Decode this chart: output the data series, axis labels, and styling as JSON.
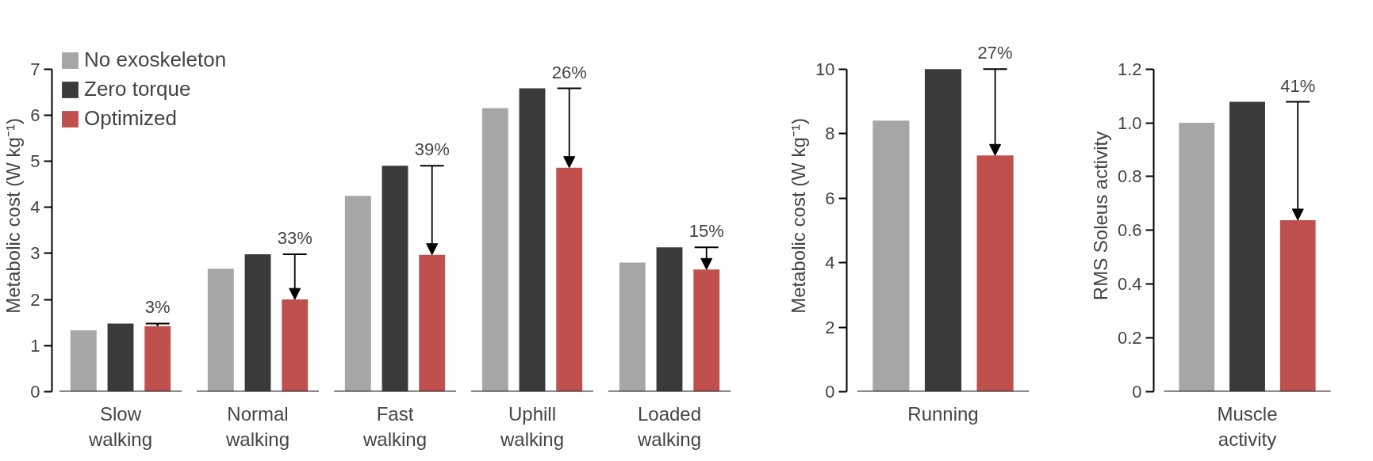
{
  "chart_data": [
    {
      "type": "bar",
      "ylabel": "Metabolic cost (W kg⁻¹)",
      "categories": [
        "Slow walking",
        "Normal walking",
        "Fast walking",
        "Uphill walking",
        "Loaded walking"
      ],
      "series": [
        {
          "name": "No exoskeleton",
          "color": "#a6a6a6",
          "values": [
            1.33,
            2.67,
            4.25,
            6.15,
            2.8
          ]
        },
        {
          "name": "Zero torque",
          "color": "#3a3a3a",
          "values": [
            1.48,
            2.98,
            4.9,
            6.58,
            3.13
          ]
        },
        {
          "name": "Optimized",
          "color": "#c0504d",
          "values": [
            1.42,
            2.0,
            2.97,
            4.86,
            2.65
          ]
        }
      ],
      "ylim": [
        0,
        7
      ],
      "yticks": [
        0,
        1,
        2,
        3,
        4,
        5,
        6,
        7
      ],
      "grid": false,
      "legend": "top left",
      "annotations": [
        {
          "text": "3%",
          "x": "Slow walking",
          "y": 1.48
        },
        {
          "text": "33%",
          "x": "Normal walking",
          "y": 2.98
        },
        {
          "text": "39%",
          "x": "Fast walking",
          "y": 4.9
        },
        {
          "text": "26%",
          "x": "Uphill walking",
          "y": 6.58
        },
        {
          "text": "15%",
          "x": "Loaded walking",
          "y": 3.13
        }
      ]
    },
    {
      "type": "bar",
      "ylabel": "Metabolic cost (W kg⁻¹)",
      "categories": [
        "Running"
      ],
      "series": [
        {
          "color": "#a6a6a6",
          "values": [
            8.4
          ]
        },
        {
          "color": "#3a3a3a",
          "values": [
            10.0
          ]
        },
        {
          "color": "#c0504d",
          "values": [
            7.32
          ]
        }
      ],
      "ylim": [
        0,
        10
      ],
      "yticks": [
        0,
        2,
        4,
        6,
        8,
        10
      ],
      "grid": false,
      "legend": false,
      "annotations": [
        {
          "text": "27%",
          "x": "Running",
          "y": 10.0
        }
      ]
    },
    {
      "type": "bar",
      "ylabel": "RMS Soleus activity",
      "categories": [
        "Muscle activity"
      ],
      "series": [
        {
          "color": "#a6a6a6",
          "values": [
            1.0
          ]
        },
        {
          "color": "#3a3a3a",
          "values": [
            1.078
          ]
        },
        {
          "color": "#c0504d",
          "values": [
            0.638
          ]
        }
      ],
      "ylim": [
        0,
        1.2
      ],
      "yticks": [
        0,
        0.2,
        0.4,
        0.6,
        0.8,
        {
          "value": 1.0,
          "label": "1.0"
        },
        1.2
      ],
      "grid": false,
      "legend": false,
      "annotations": [
        {
          "text": "41%",
          "x": "Muscle activity",
          "y": 1.078
        }
      ]
    }
  ]
}
